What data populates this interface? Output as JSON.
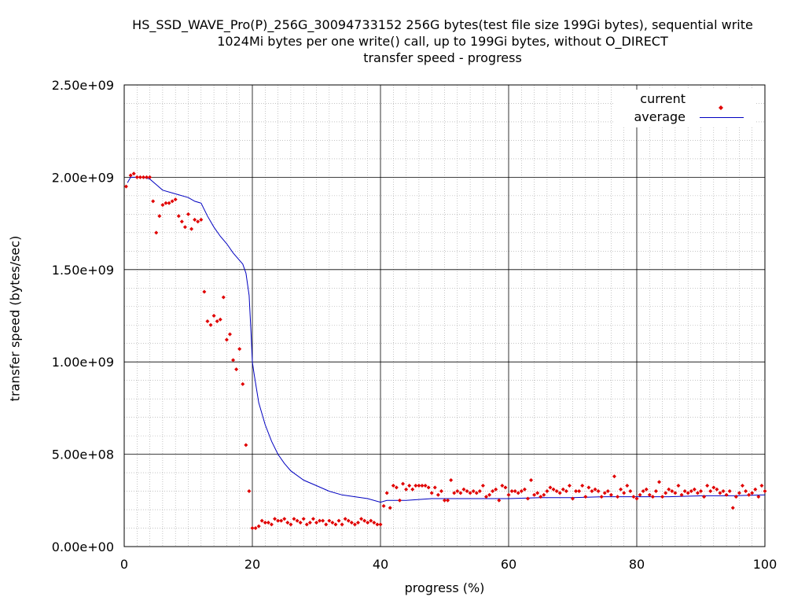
{
  "chart_data": {
    "type": "scatter",
    "title_lines": [
      "HS_SSD_WAVE_Pro(P)_256G_30094733152 256G bytes(test file size 199Gi bytes), sequential write",
      "1024Mi bytes per one write() call, up to 199Gi bytes, without O_DIRECT",
      "transfer speed - progress"
    ],
    "xlabel": "progress (%)",
    "ylabel": "transfer speed (bytes/sec)",
    "xlim": [
      0,
      100
    ],
    "ylim": [
      0,
      2500000000
    ],
    "x_ticks": [
      "0",
      "20",
      "40",
      "60",
      "80",
      "100"
    ],
    "y_ticks": [
      "0.00e+00",
      "5.00e+08",
      "1.00e+09",
      "1.50e+09",
      "2.00e+09",
      "2.50e+09"
    ],
    "grid": true,
    "legend_position": "top-right",
    "series": [
      {
        "name": "current",
        "style": "points",
        "color": "#e00000",
        "points": [
          [
            0.3,
            1950000000.0
          ],
          [
            1,
            2010000000.0
          ],
          [
            1.5,
            2020000000.0
          ],
          [
            2,
            2000000000.0
          ],
          [
            2.5,
            2000000000.0
          ],
          [
            3,
            2000000000.0
          ],
          [
            3.5,
            2000000000.0
          ],
          [
            4,
            2000000000.0
          ],
          [
            4.5,
            1870000000.0
          ],
          [
            5,
            1700000000.0
          ],
          [
            5.5,
            1790000000.0
          ],
          [
            6,
            1850000000.0
          ],
          [
            6.5,
            1860000000.0
          ],
          [
            7,
            1860000000.0
          ],
          [
            7.5,
            1870000000.0
          ],
          [
            8,
            1880000000.0
          ],
          [
            8.5,
            1790000000.0
          ],
          [
            9,
            1760000000.0
          ],
          [
            9.5,
            1730000000.0
          ],
          [
            10,
            1800000000.0
          ],
          [
            10.5,
            1720000000.0
          ],
          [
            11,
            1770000000.0
          ],
          [
            11.5,
            1760000000.0
          ],
          [
            12,
            1770000000.0
          ],
          [
            12.5,
            1380000000.0
          ],
          [
            13,
            1220000000.0
          ],
          [
            13.5,
            1200000000.0
          ],
          [
            14,
            1250000000.0
          ],
          [
            14.5,
            1220000000.0
          ],
          [
            15,
            1230000000.0
          ],
          [
            15.5,
            1350000000.0
          ],
          [
            16,
            1120000000.0
          ],
          [
            16.5,
            1150000000.0
          ],
          [
            17,
            1010000000.0
          ],
          [
            17.5,
            960000000.0
          ],
          [
            18,
            1070000000.0
          ],
          [
            18.5,
            880000000.0
          ],
          [
            19,
            550000000.0
          ],
          [
            19.5,
            300000000.0
          ],
          [
            20,
            100000000.0
          ],
          [
            20.5,
            100000000.0
          ],
          [
            21,
            110000000.0
          ],
          [
            21.5,
            140000000.0
          ],
          [
            22,
            130000000.0
          ],
          [
            22.5,
            130000000.0
          ],
          [
            23,
            120000000.0
          ],
          [
            23.5,
            150000000.0
          ],
          [
            24,
            140000000.0
          ],
          [
            24.5,
            140000000.0
          ],
          [
            25,
            150000000.0
          ],
          [
            25.5,
            130000000.0
          ],
          [
            26,
            120000000.0
          ],
          [
            26.5,
            150000000.0
          ],
          [
            27,
            140000000.0
          ],
          [
            27.5,
            130000000.0
          ],
          [
            28,
            150000000.0
          ],
          [
            28.5,
            120000000.0
          ],
          [
            29,
            130000000.0
          ],
          [
            29.5,
            150000000.0
          ],
          [
            30,
            130000000.0
          ],
          [
            30.5,
            140000000.0
          ],
          [
            31,
            140000000.0
          ],
          [
            31.5,
            120000000.0
          ],
          [
            32,
            140000000.0
          ],
          [
            32.5,
            130000000.0
          ],
          [
            33,
            120000000.0
          ],
          [
            33.5,
            140000000.0
          ],
          [
            34,
            120000000.0
          ],
          [
            34.5,
            150000000.0
          ],
          [
            35,
            140000000.0
          ],
          [
            35.5,
            130000000.0
          ],
          [
            36,
            120000000.0
          ],
          [
            36.5,
            130000000.0
          ],
          [
            37,
            150000000.0
          ],
          [
            37.5,
            140000000.0
          ],
          [
            38,
            130000000.0
          ],
          [
            38.5,
            140000000.0
          ],
          [
            39,
            130000000.0
          ],
          [
            39.5,
            120000000.0
          ],
          [
            40,
            120000000.0
          ],
          [
            40.5,
            220000000.0
          ],
          [
            41,
            290000000.0
          ],
          [
            41.5,
            210000000.0
          ],
          [
            42,
            330000000.0
          ],
          [
            42.5,
            320000000.0
          ],
          [
            43,
            250000000.0
          ],
          [
            43.5,
            340000000.0
          ],
          [
            44,
            310000000.0
          ],
          [
            44.5,
            330000000.0
          ],
          [
            45,
            310000000.0
          ],
          [
            45.5,
            330000000.0
          ],
          [
            46,
            330000000.0
          ],
          [
            46.5,
            330000000.0
          ],
          [
            47,
            330000000.0
          ],
          [
            47.5,
            320000000.0
          ],
          [
            48,
            290000000.0
          ],
          [
            48.5,
            320000000.0
          ],
          [
            49,
            280000000.0
          ],
          [
            49.5,
            300000000.0
          ],
          [
            50,
            250000000.0
          ],
          [
            50.5,
            250000000.0
          ],
          [
            51,
            360000000.0
          ],
          [
            51.5,
            290000000.0
          ],
          [
            52,
            300000000.0
          ],
          [
            52.5,
            290000000.0
          ],
          [
            53,
            310000000.0
          ],
          [
            53.5,
            300000000.0
          ],
          [
            54,
            290000000.0
          ],
          [
            54.5,
            300000000.0
          ],
          [
            55,
            290000000.0
          ],
          [
            55.5,
            300000000.0
          ],
          [
            56,
            330000000.0
          ],
          [
            56.5,
            270000000.0
          ],
          [
            57,
            280000000.0
          ],
          [
            57.5,
            300000000.0
          ],
          [
            58,
            310000000.0
          ],
          [
            58.5,
            250000000.0
          ],
          [
            59,
            330000000.0
          ],
          [
            59.5,
            320000000.0
          ],
          [
            60,
            280000000.0
          ],
          [
            60.5,
            300000000.0
          ],
          [
            61,
            300000000.0
          ],
          [
            61.5,
            290000000.0
          ],
          [
            62,
            300000000.0
          ],
          [
            62.5,
            310000000.0
          ],
          [
            63,
            260000000.0
          ],
          [
            63.5,
            360000000.0
          ],
          [
            64,
            280000000.0
          ],
          [
            64.5,
            290000000.0
          ],
          [
            65,
            270000000.0
          ],
          [
            65.5,
            280000000.0
          ],
          [
            66,
            300000000.0
          ],
          [
            66.5,
            320000000.0
          ],
          [
            67,
            310000000.0
          ],
          [
            67.5,
            300000000.0
          ],
          [
            68,
            290000000.0
          ],
          [
            68.5,
            310000000.0
          ],
          [
            69,
            300000000.0
          ],
          [
            69.5,
            330000000.0
          ],
          [
            70,
            260000000.0
          ],
          [
            70.5,
            300000000.0
          ],
          [
            71,
            300000000.0
          ],
          [
            71.5,
            330000000.0
          ],
          [
            72,
            270000000.0
          ],
          [
            72.5,
            320000000.0
          ],
          [
            73,
            300000000.0
          ],
          [
            73.5,
            310000000.0
          ],
          [
            74,
            300000000.0
          ],
          [
            74.5,
            270000000.0
          ],
          [
            75,
            290000000.0
          ],
          [
            75.5,
            300000000.0
          ],
          [
            76,
            280000000.0
          ],
          [
            76.5,
            380000000.0
          ],
          [
            77,
            270000000.0
          ],
          [
            77.5,
            310000000.0
          ],
          [
            78,
            290000000.0
          ],
          [
            78.5,
            330000000.0
          ],
          [
            79,
            300000000.0
          ],
          [
            79.5,
            270000000.0
          ],
          [
            80,
            260000000.0
          ],
          [
            80.5,
            280000000.0
          ],
          [
            81,
            300000000.0
          ],
          [
            81.5,
            310000000.0
          ],
          [
            82,
            280000000.0
          ],
          [
            82.5,
            270000000.0
          ],
          [
            83,
            300000000.0
          ],
          [
            83.5,
            350000000.0
          ],
          [
            84,
            270000000.0
          ],
          [
            84.5,
            290000000.0
          ],
          [
            85,
            310000000.0
          ],
          [
            85.5,
            300000000.0
          ],
          [
            86,
            290000000.0
          ],
          [
            86.5,
            330000000.0
          ],
          [
            87,
            280000000.0
          ],
          [
            87.5,
            300000000.0
          ],
          [
            88,
            290000000.0
          ],
          [
            88.5,
            300000000.0
          ],
          [
            89,
            310000000.0
          ],
          [
            89.5,
            290000000.0
          ],
          [
            90,
            300000000.0
          ],
          [
            90.5,
            270000000.0
          ],
          [
            91,
            330000000.0
          ],
          [
            91.5,
            300000000.0
          ],
          [
            92,
            320000000.0
          ],
          [
            92.5,
            310000000.0
          ],
          [
            93,
            290000000.0
          ],
          [
            93.5,
            300000000.0
          ],
          [
            94,
            280000000.0
          ],
          [
            94.5,
            300000000.0
          ],
          [
            95,
            210000000.0
          ],
          [
            95.5,
            270000000.0
          ],
          [
            96,
            290000000.0
          ],
          [
            96.5,
            330000000.0
          ],
          [
            97,
            300000000.0
          ],
          [
            97.5,
            280000000.0
          ],
          [
            98,
            290000000.0
          ],
          [
            98.5,
            310000000.0
          ],
          [
            99,
            270000000.0
          ],
          [
            99.5,
            330000000.0
          ],
          [
            100,
            300000000.0
          ]
        ]
      },
      {
        "name": "average",
        "style": "line",
        "color": "#0000c0",
        "points": [
          [
            0.5,
            1970000000.0
          ],
          [
            1,
            2000000000.0
          ],
          [
            2,
            2000000000.0
          ],
          [
            3,
            2000000000.0
          ],
          [
            4,
            1990000000.0
          ],
          [
            5,
            1960000000.0
          ],
          [
            6,
            1930000000.0
          ],
          [
            8,
            1910000000.0
          ],
          [
            10,
            1890000000.0
          ],
          [
            11,
            1870000000.0
          ],
          [
            12,
            1860000000.0
          ],
          [
            13,
            1790000000.0
          ],
          [
            14,
            1730000000.0
          ],
          [
            15,
            1680000000.0
          ],
          [
            16,
            1640000000.0
          ],
          [
            17,
            1590000000.0
          ],
          [
            18,
            1550000000.0
          ],
          [
            18.5,
            1530000000.0
          ],
          [
            19,
            1480000000.0
          ],
          [
            19.5,
            1360000000.0
          ],
          [
            19.8,
            1150000000.0
          ],
          [
            20,
            1000000000.0
          ],
          [
            20.3,
            930000000.0
          ],
          [
            21,
            780000000.0
          ],
          [
            22,
            660000000.0
          ],
          [
            23,
            570000000.0
          ],
          [
            24,
            500000000.0
          ],
          [
            25,
            450000000.0
          ],
          [
            26,
            410000000.0
          ],
          [
            28,
            360000000.0
          ],
          [
            30,
            330000000.0
          ],
          [
            32,
            300000000.0
          ],
          [
            34,
            280000000.0
          ],
          [
            36,
            270000000.0
          ],
          [
            38,
            260000000.0
          ],
          [
            40,
            240000000.0
          ],
          [
            41,
            250000000.0
          ],
          [
            44,
            250000000.0
          ],
          [
            48,
            260000000.0
          ],
          [
            52,
            260000000.0
          ],
          [
            56,
            260000000.0
          ],
          [
            60,
            260000000.0
          ],
          [
            65,
            265000000.0
          ],
          [
            70,
            265000000.0
          ],
          [
            75,
            270000000.0
          ],
          [
            80,
            270000000.0
          ],
          [
            85,
            270000000.0
          ],
          [
            90,
            275000000.0
          ],
          [
            95,
            275000000.0
          ],
          [
            100,
            280000000.0
          ]
        ]
      }
    ]
  }
}
